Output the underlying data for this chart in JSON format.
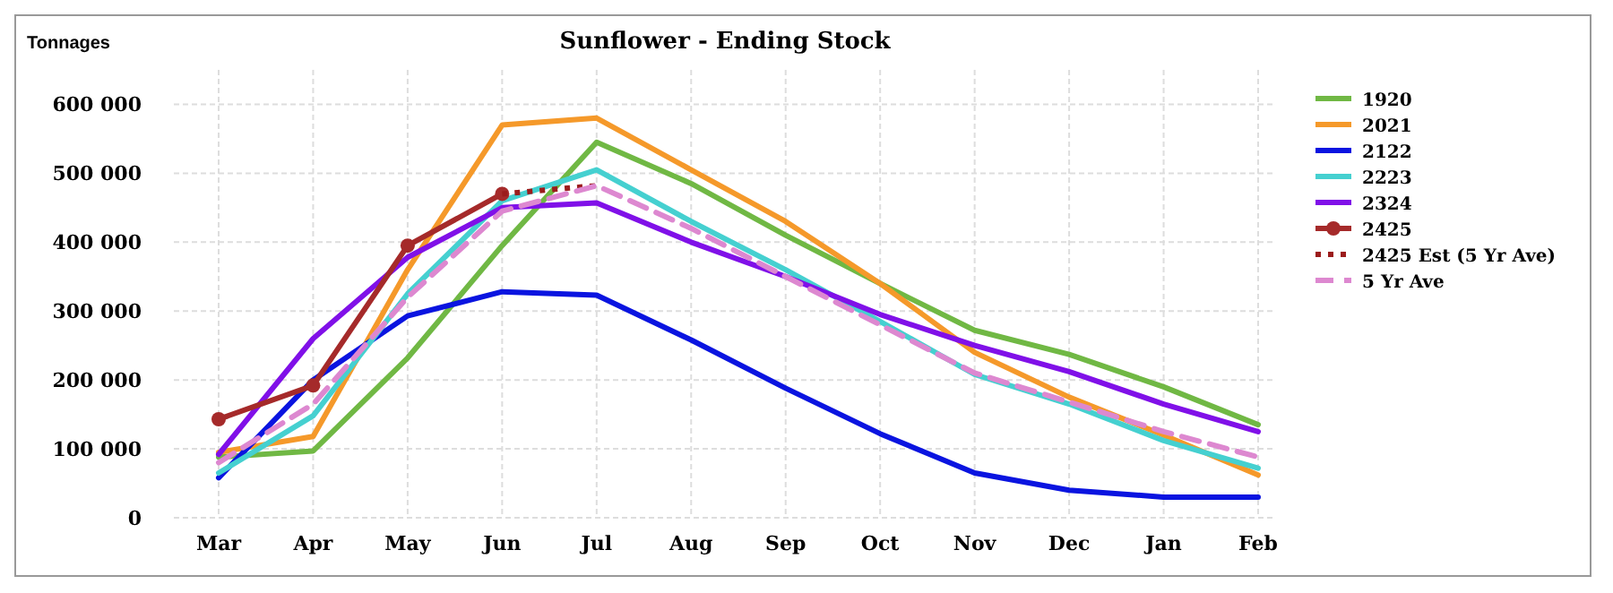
{
  "chart_data": {
    "type": "line",
    "title": "Sunflower - Ending Stock",
    "ylabel": "Tonnages",
    "categories": [
      "Mar",
      "Apr",
      "May",
      "Jun",
      "Jul",
      "Aug",
      "Sep",
      "Oct",
      "Nov",
      "Dec",
      "Jan",
      "Feb"
    ],
    "ylim": [
      0,
      650000
    ],
    "yticks": [
      {
        "value": 0,
        "label": "0"
      },
      {
        "value": 100000,
        "label": "100 000"
      },
      {
        "value": 200000,
        "label": "200 000"
      },
      {
        "value": 300000,
        "label": "300 000"
      },
      {
        "value": 400000,
        "label": "400 000"
      },
      {
        "value": 500000,
        "label": "500 000"
      },
      {
        "value": 600000,
        "label": "600 000"
      }
    ],
    "grid": true,
    "legend": "right",
    "line_style": "solid",
    "series": [
      {
        "name": "1920",
        "color": "#70b844",
        "values": [
          88000,
          97000,
          232000,
          395000,
          545000,
          485000,
          410000,
          340000,
          272000,
          237000,
          190000,
          135000
        ]
      },
      {
        "name": "2021",
        "color": "#f5992a",
        "values": [
          95000,
          118000,
          360000,
          570000,
          580000,
          505000,
          430000,
          340000,
          240000,
          175000,
          120000,
          62000
        ]
      },
      {
        "name": "2122",
        "color": "#0a14e0",
        "values": [
          58000,
          200000,
          293000,
          328000,
          323000,
          258000,
          188000,
          122000,
          65000,
          40000,
          30000,
          30000
        ]
      },
      {
        "name": "2223",
        "color": "#45d0d0",
        "values": [
          65000,
          148000,
          325000,
          460000,
          505000,
          430000,
          360000,
          285000,
          208000,
          165000,
          112000,
          72000
        ]
      },
      {
        "name": "2324",
        "color": "#8010e8",
        "values": [
          92000,
          260000,
          378000,
          450000,
          457000,
          400000,
          350000,
          295000,
          250000,
          212000,
          165000,
          125000
        ]
      },
      {
        "name": "2425",
        "color": "#a52a2a",
        "marker": "circle",
        "values": [
          143000,
          192000,
          395000,
          470000,
          null,
          null,
          null,
          null,
          null,
          null,
          null,
          null
        ]
      },
      {
        "name": "2425 Est (5 Yr Ave)",
        "color": "#9b1c1c",
        "marker": "none",
        "line_style": "dotted",
        "values": [
          null,
          null,
          null,
          470000,
          482000,
          null,
          null,
          null,
          null,
          null,
          null,
          null
        ]
      },
      {
        "name": "5 Yr Ave",
        "color": "#dd88d0",
        "line_style": "dashed",
        "values": [
          80000,
          165000,
          320000,
          445000,
          482000,
          420000,
          350000,
          280000,
          210000,
          168000,
          125000,
          88000
        ]
      }
    ]
  }
}
